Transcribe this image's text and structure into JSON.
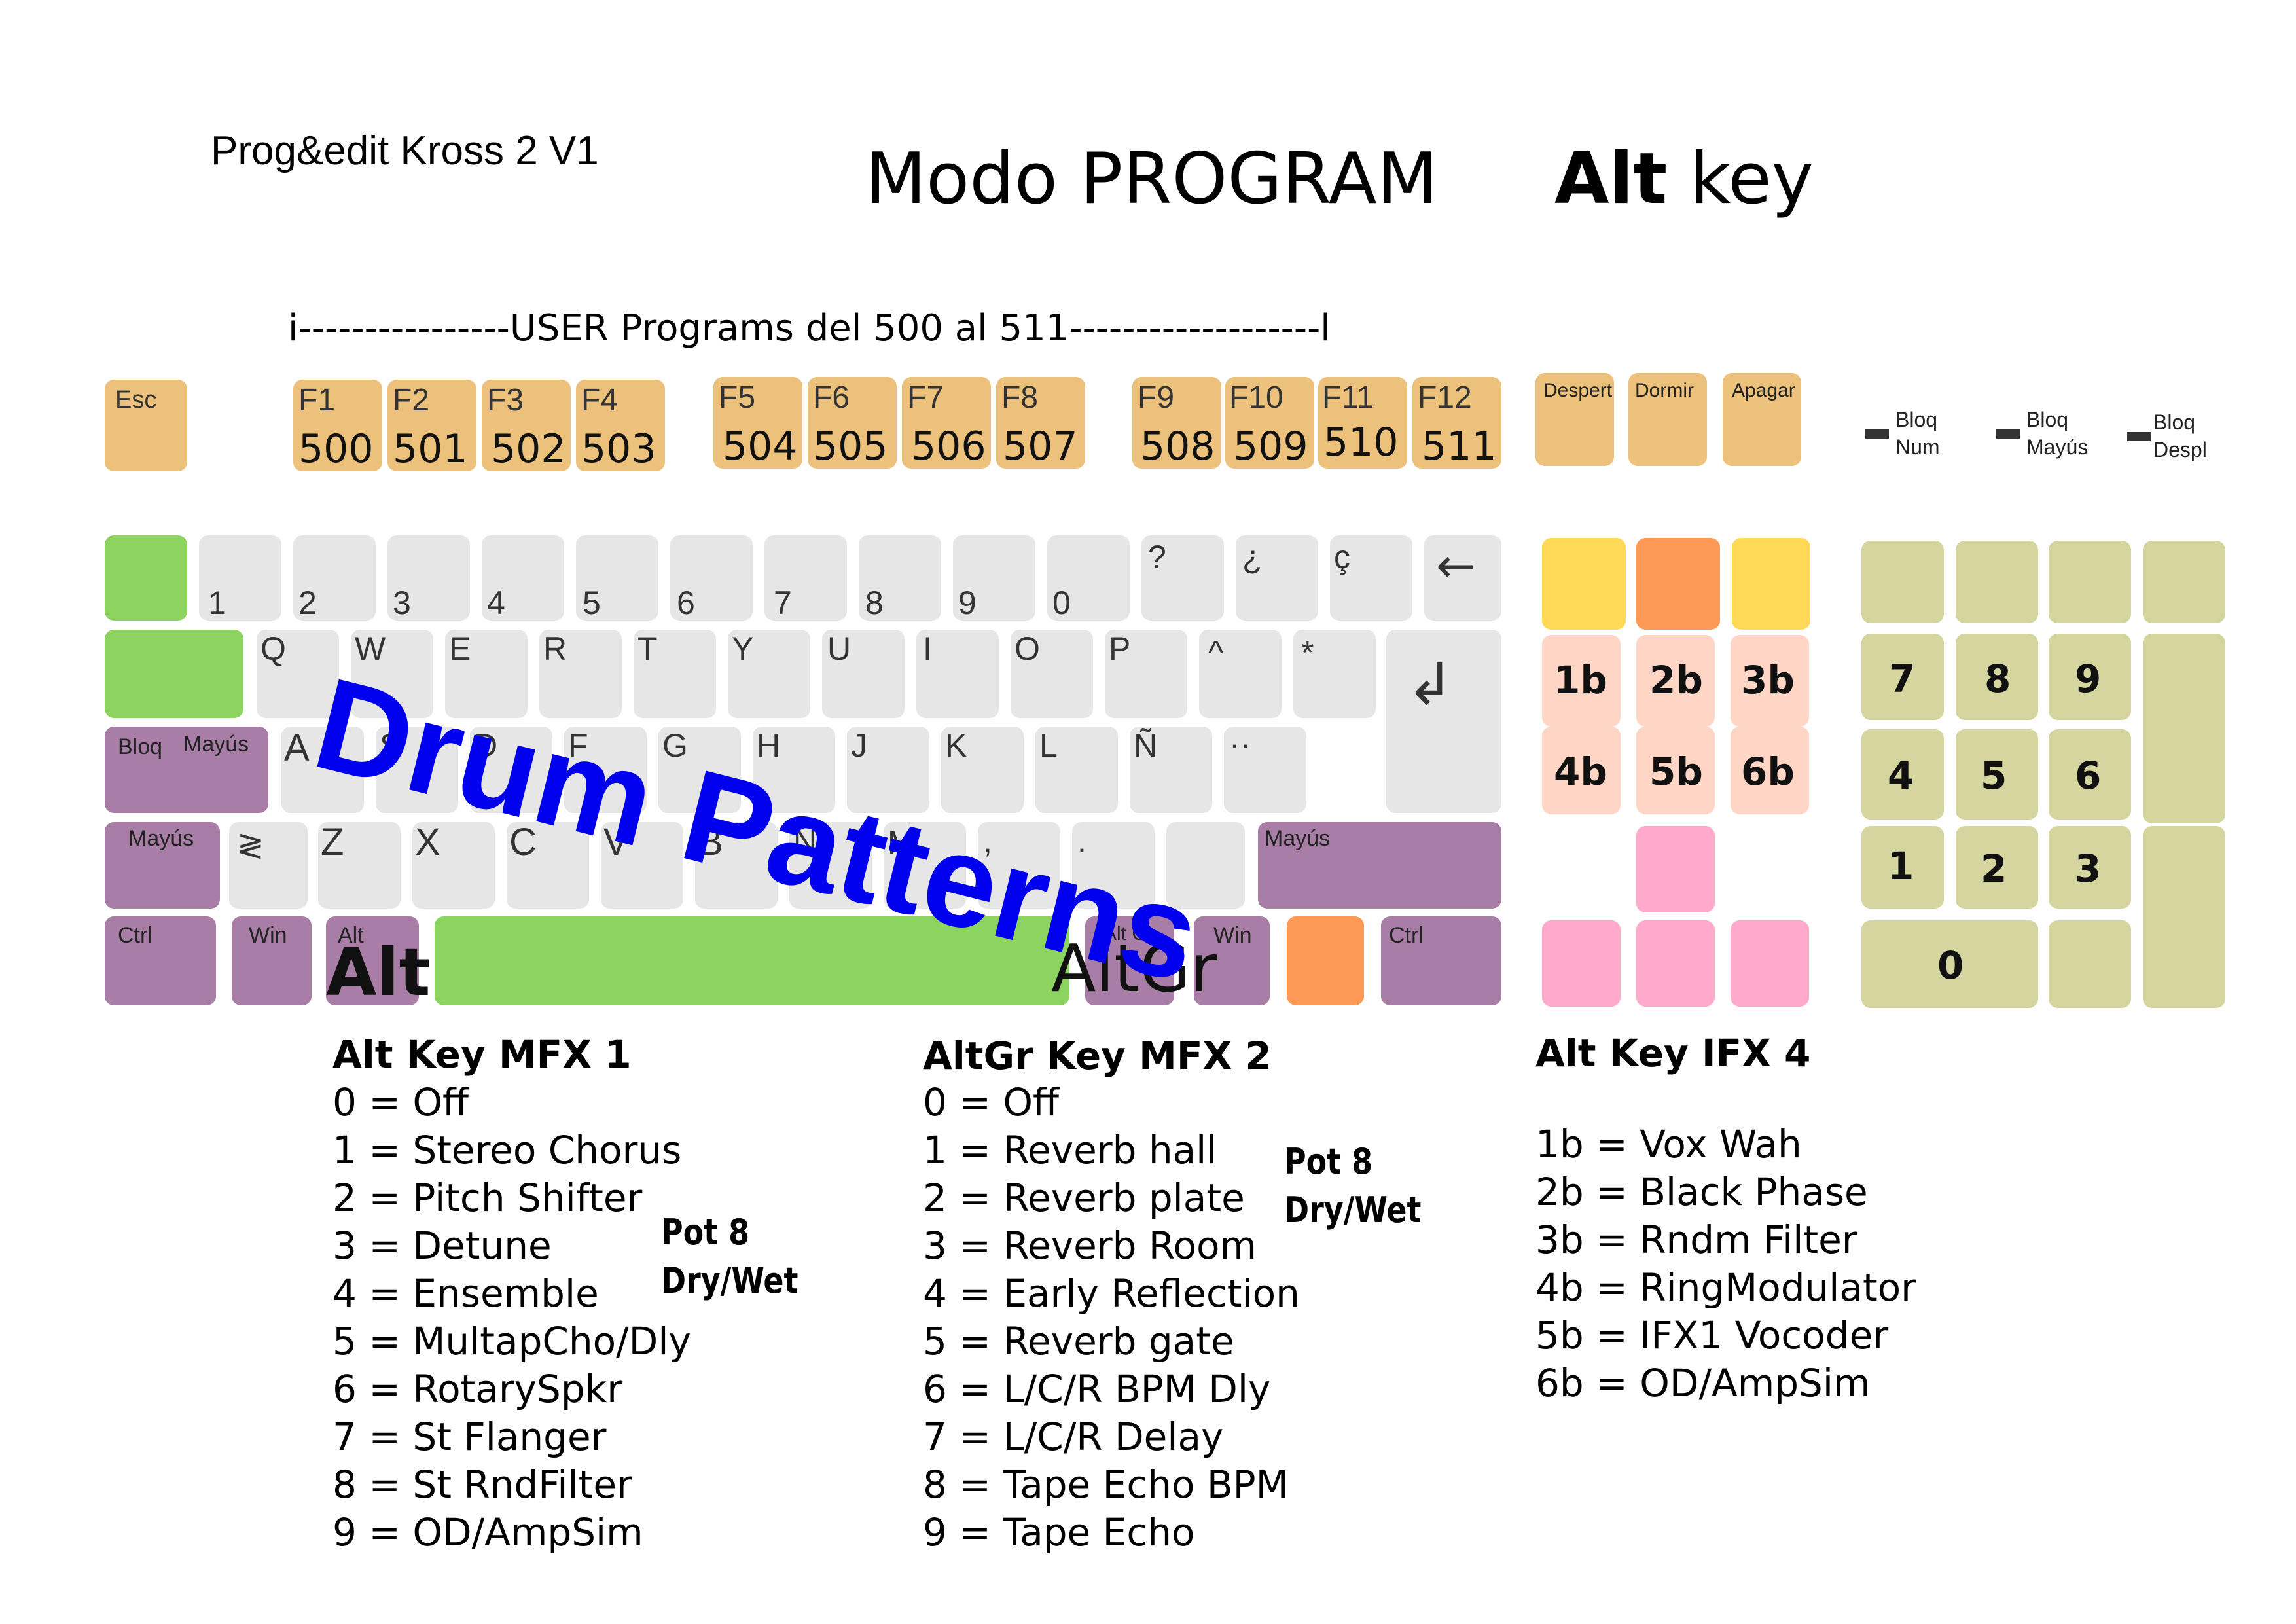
{
  "header": {
    "app_version": "Prog&edit Kross 2 V1",
    "mode_title": "Modo PROGRAM",
    "alt_bold": "Alt",
    "alt_rest": " key",
    "user_range": "i----------------USER Programs del 500 al 511-------------------l"
  },
  "function_row": {
    "esc": "Esc",
    "fkeys": [
      {
        "name": "F1",
        "program": "500"
      },
      {
        "name": "F2",
        "program": "501"
      },
      {
        "name": "F3",
        "program": "502"
      },
      {
        "name": "F4",
        "program": "503"
      },
      {
        "name": "F5",
        "program": "504"
      },
      {
        "name": "F6",
        "program": "505"
      },
      {
        "name": "F7",
        "program": "506"
      },
      {
        "name": "F8",
        "program": "507"
      },
      {
        "name": "F9",
        "program": "508"
      },
      {
        "name": "F10",
        "program": "509"
      },
      {
        "name": "F11",
        "program": "510"
      },
      {
        "name": "F12",
        "program": "511"
      }
    ],
    "power": [
      "Despert",
      "Dormir",
      "Apagar"
    ]
  },
  "indicators": [
    {
      "line1": "Bloq",
      "line2": "Num"
    },
    {
      "line1": "Bloq",
      "line2": "Mayús"
    },
    {
      "line1": "Bloq",
      "line2": "Despl"
    }
  ],
  "rows": {
    "numbers": [
      "1",
      "2",
      "3",
      "4",
      "5",
      "6",
      "7",
      "8",
      "9",
      "0",
      "?",
      "¿",
      "ç"
    ],
    "backspace_icon": "←",
    "qwerty": [
      "Q",
      "W",
      "E",
      "R",
      "T",
      "Y",
      "U",
      "I",
      "O",
      "P",
      "^",
      "*"
    ],
    "enter_icon": "↲",
    "caps_line1": "Bloq",
    "caps_line2": "Mayús",
    "asdf": [
      "A",
      "S",
      "D",
      "F",
      "G",
      "H",
      "J",
      "K",
      "L",
      "Ñ",
      "··"
    ],
    "shift_left": "Mayús",
    "angle": "≷",
    "zxcv": [
      "Z",
      "X",
      "C",
      "V",
      "B",
      "N",
      "M",
      ",",
      "."
    ],
    "shift_right": "Mayús",
    "ctrl_left": "Ctrl",
    "win_left": "Win",
    "alt_small": "Alt",
    "alt_big": "Alt",
    "altgr_small": "Alt Gr",
    "altgr_big": "AltGr",
    "win_right": "Win",
    "ctrl_right": "Ctrl"
  },
  "nav_cluster": [
    "1b",
    "2b",
    "3b",
    "4b",
    "5b",
    "6b"
  ],
  "numpad": [
    "7",
    "8",
    "9",
    "4",
    "5",
    "6",
    "1",
    "2",
    "3",
    "0"
  ],
  "overlay_text": "Drum Patterns",
  "lists": {
    "mfx1": {
      "title": "Alt Key MFX 1",
      "items": [
        "0 = Off",
        "1 = Stereo Chorus",
        "2 = Pitch Shifter",
        "3 = Detune",
        "4 = Ensemble",
        "5 = MultapCho/Dly",
        "6 = RotarySpkr",
        "7 = St Flanger",
        "8 = St RndFilter",
        "9 = OD/AmpSim"
      ],
      "pot_line1": "Pot 8",
      "pot_line2": "Dry/Wet"
    },
    "mfx2": {
      "title": "AltGr Key MFX 2",
      "items": [
        "0 = Off",
        "1 = Reverb hall",
        "2 = Reverb plate",
        "3 = Reverb Room",
        "4 = Early Reflection",
        "5 = Reverb gate",
        "6 = L/C/R BPM Dly",
        "7 = L/C/R Delay",
        "8 = Tape Echo BPM",
        "9 = Tape Echo"
      ],
      "pot_line1": "Pot 8",
      "pot_line2": "Dry/Wet"
    },
    "ifx4": {
      "title": "Alt Key IFX 4",
      "items": [
        "1b = Vox Wah",
        "2b = Black Phase",
        "3b = Rndm Filter",
        "4b = RingModulator",
        "5b = IFX1 Vocoder",
        "6b = OD/AmpSim"
      ]
    }
  },
  "colors": {
    "function_keys": "#ecc17c",
    "keys": "#e6e6e6",
    "green": "#8dd35f",
    "purple": "#a87ea6",
    "orange": "#ff9955",
    "yellow": "#ffd955",
    "peach": "#ffd5c6",
    "pink": "#ffaacc",
    "numpad": "#d5d5a0",
    "overlay": "#0000ee"
  }
}
